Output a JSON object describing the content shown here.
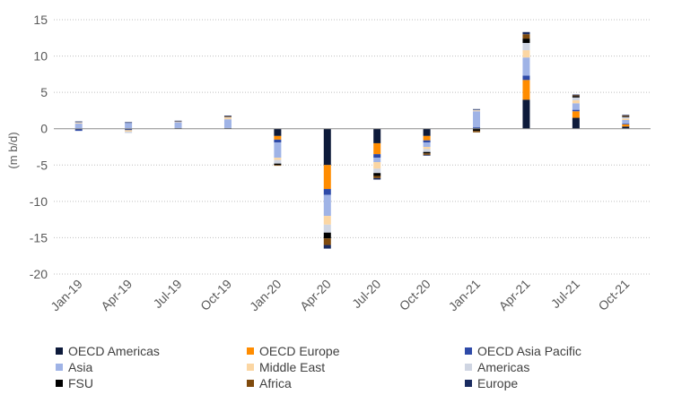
{
  "chart_data": {
    "type": "bar",
    "stacked": true,
    "ylabel": "(m b/d)",
    "ylim": [
      -20,
      15
    ],
    "yticks": [
      15,
      10,
      5,
      0,
      -5,
      -10,
      -15,
      -20
    ],
    "grid": true,
    "legend_position": "bottom",
    "categories": [
      "Jan-19",
      "Apr-19",
      "Jul-19",
      "Oct-19",
      "Jan-20",
      "Apr-20",
      "Jul-20",
      "Oct-20",
      "Jan-21",
      "Apr-21",
      "Jul-21",
      "Oct-21"
    ],
    "series": [
      {
        "name": "OECD Americas",
        "color": "#0d1a3a",
        "values": [
          -0.1,
          -0.1,
          0.1,
          0.1,
          -1.0,
          -5.0,
          -2.0,
          -1.0,
          0.1,
          4.0,
          1.5,
          0.3
        ]
      },
      {
        "name": "OECD Europe",
        "color": "#ff8c00",
        "values": [
          0.0,
          0.0,
          0.0,
          0.0,
          -0.5,
          -3.3,
          -1.5,
          -0.6,
          0.0,
          2.7,
          0.9,
          0.3
        ]
      },
      {
        "name": "OECD Asia Pacific",
        "color": "#2e4aa8",
        "values": [
          -0.2,
          -0.1,
          0.0,
          0.0,
          -0.4,
          -0.8,
          -0.5,
          -0.3,
          0.1,
          0.6,
          0.2,
          0.1
        ]
      },
      {
        "name": "Asia",
        "color": "#9fb3e6",
        "values": [
          0.7,
          0.8,
          0.8,
          1.2,
          -2.1,
          -2.9,
          -0.6,
          -0.6,
          2.2,
          2.5,
          0.9,
          0.5
        ]
      },
      {
        "name": "Middle East",
        "color": "#fbd6a3",
        "values": [
          0.1,
          -0.2,
          0.1,
          0.2,
          -0.3,
          -1.2,
          -0.9,
          -0.3,
          0.1,
          1.0,
          0.4,
          0.2
        ]
      },
      {
        "name": "Americas",
        "color": "#cfd5e2",
        "values": [
          0.1,
          -0.2,
          0.0,
          0.1,
          -0.5,
          -1.1,
          -0.6,
          -0.4,
          0.1,
          1.0,
          0.4,
          0.2
        ]
      },
      {
        "name": "FSU",
        "color": "#000000",
        "values": [
          0.0,
          0.0,
          0.0,
          0.0,
          -0.2,
          -0.8,
          -0.4,
          -0.2,
          -0.3,
          0.6,
          0.2,
          0.1
        ]
      },
      {
        "name": "Africa",
        "color": "#7f4a0d",
        "values": [
          0.0,
          0.0,
          0.0,
          0.1,
          -0.1,
          -0.9,
          -0.3,
          -0.2,
          -0.2,
          0.6,
          0.1,
          0.1
        ]
      },
      {
        "name": "Europe",
        "color": "#1a2b60",
        "values": [
          0.1,
          0.1,
          0.1,
          0.1,
          0.0,
          -0.5,
          -0.2,
          -0.1,
          0.1,
          0.3,
          0.1,
          0.1
        ]
      }
    ]
  }
}
